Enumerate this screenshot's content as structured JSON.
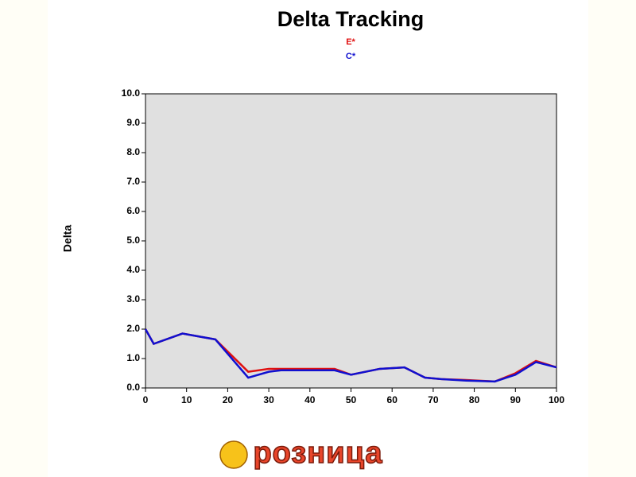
{
  "chart_data": {
    "type": "line",
    "title": "Delta Tracking",
    "y_label": "Delta",
    "x": [
      0,
      2,
      9,
      13,
      17,
      25,
      30,
      33,
      35,
      42,
      45,
      46,
      50,
      57,
      63,
      68,
      72,
      78,
      85,
      90,
      95,
      100
    ],
    "series": [
      {
        "name": "E*",
        "color": "#e01010",
        "values": [
          2.0,
          1.5,
          1.85,
          1.75,
          1.65,
          0.55,
          0.65,
          0.65,
          0.65,
          0.65,
          0.65,
          0.65,
          0.45,
          0.65,
          0.7,
          0.35,
          0.3,
          0.27,
          0.22,
          0.5,
          0.92,
          0.7
        ]
      },
      {
        "name": "C*",
        "color": "#1010d0",
        "values": [
          2.0,
          1.5,
          1.85,
          1.75,
          1.65,
          0.35,
          0.55,
          0.6,
          0.6,
          0.6,
          0.6,
          0.6,
          0.45,
          0.65,
          0.7,
          0.35,
          0.3,
          0.25,
          0.22,
          0.45,
          0.88,
          0.7
        ]
      }
    ],
    "xlim": [
      0,
      100
    ],
    "xticks": [
      0,
      10,
      20,
      30,
      40,
      50,
      60,
      70,
      80,
      90,
      100
    ],
    "ylim": [
      0,
      10
    ],
    "yticks": [
      {
        "value": 0,
        "label": "0.0"
      },
      {
        "value": 1,
        "label": "1.0"
      },
      {
        "value": 2,
        "label": "2.0"
      },
      {
        "value": 3,
        "label": "3.0"
      },
      {
        "value": 4,
        "label": "4.0"
      },
      {
        "value": 5,
        "label": "5.0"
      },
      {
        "value": 6,
        "label": "6.0"
      },
      {
        "value": 7,
        "label": "7.0"
      },
      {
        "value": 8,
        "label": "8.0"
      },
      {
        "value": 9,
        "label": "9.0"
      },
      {
        "value": 10,
        "label": "10.0"
      }
    ],
    "plot_background": "#e0e0e0"
  },
  "logo_text": "розница"
}
